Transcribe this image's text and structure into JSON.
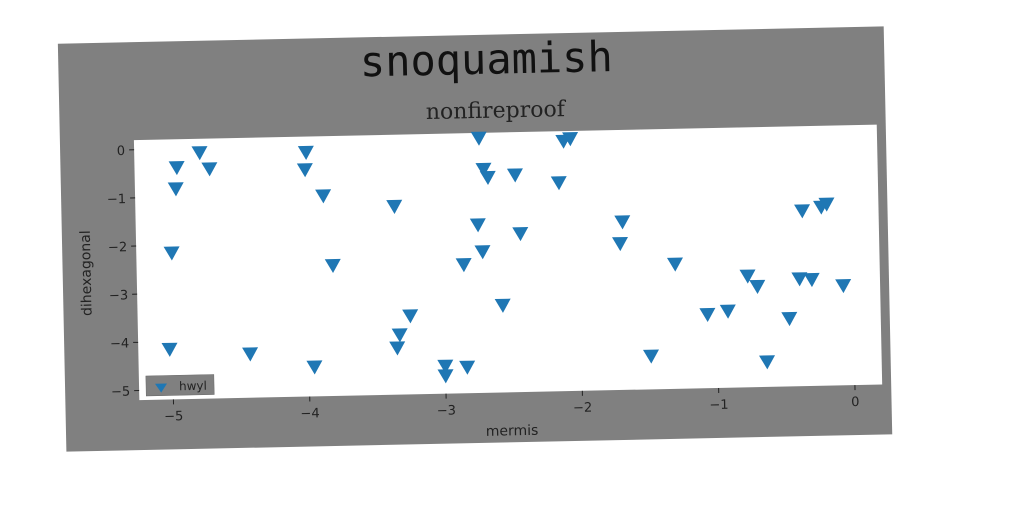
{
  "colors": {
    "figure_bg": "#808080",
    "plot_bg": "#ffffff",
    "marker": "#1f77b4",
    "legend_bg": "#808080"
  },
  "chart_data": {
    "type": "scatter",
    "title": "snoquamish",
    "subtitle": "nonfireproof",
    "xlabel": "mermis",
    "ylabel": "dihexagonal",
    "xlim": [
      -5.25,
      0.2
    ],
    "ylim": [
      -5.2,
      0.2
    ],
    "x_ticks": [
      -5,
      -4,
      -3,
      -2,
      -1,
      0
    ],
    "y_ticks": [
      0,
      -1,
      -2,
      -3,
      -4,
      -5
    ],
    "x_tick_labels": [
      "−5",
      "−4",
      "−3",
      "−2",
      "−1",
      "0"
    ],
    "y_tick_labels": [
      "0",
      "−1",
      "−2",
      "−3",
      "−4",
      "−5"
    ],
    "grid": false,
    "legend_position": "lower-left",
    "marker": "triangle-down",
    "series": [
      {
        "name": "hwyl",
        "points": [
          [
            -4.94,
            -0.38
          ],
          [
            -4.77,
            -0.08
          ],
          [
            -4.7,
            -0.42
          ],
          [
            -4.95,
            -0.82
          ],
          [
            -4.99,
            -2.15
          ],
          [
            -5.02,
            -4.15
          ],
          [
            -4.43,
            -4.28
          ],
          [
            -3.99,
            -0.12
          ],
          [
            -4.0,
            -0.48
          ],
          [
            -3.87,
            -1.03
          ],
          [
            -3.81,
            -2.48
          ],
          [
            -3.96,
            -4.58
          ],
          [
            -3.35,
            -1.28
          ],
          [
            -3.25,
            -3.56
          ],
          [
            -3.33,
            -3.95
          ],
          [
            -3.35,
            -4.22
          ],
          [
            -3.0,
            -4.62
          ],
          [
            -3.0,
            -4.82
          ],
          [
            -2.84,
            -4.65
          ],
          [
            -2.85,
            -2.52
          ],
          [
            -2.74,
            -1.7
          ],
          [
            -2.71,
            -2.26
          ],
          [
            -2.72,
            0.1
          ],
          [
            -2.69,
            -0.55
          ],
          [
            -2.66,
            -0.72
          ],
          [
            -2.57,
            -3.38
          ],
          [
            -2.46,
            -0.68
          ],
          [
            -2.43,
            -1.9
          ],
          [
            -2.14,
            -0.86
          ],
          [
            -2.1,
            0.0
          ],
          [
            -2.05,
            0.05
          ],
          [
            -1.7,
            -2.15
          ],
          [
            -1.68,
            -1.7
          ],
          [
            -1.49,
            -4.5
          ],
          [
            -1.3,
            -2.6
          ],
          [
            -1.07,
            -3.66
          ],
          [
            -0.92,
            -3.6
          ],
          [
            -0.77,
            -2.88
          ],
          [
            -0.7,
            -3.1
          ],
          [
            -0.64,
            -4.67
          ],
          [
            -0.47,
            -3.78
          ],
          [
            -0.39,
            -2.96
          ],
          [
            -0.36,
            -1.55
          ],
          [
            -0.3,
            -2.98
          ],
          [
            -0.22,
            -1.48
          ],
          [
            -0.18,
            -1.42
          ],
          [
            -0.07,
            -3.12
          ]
        ]
      }
    ]
  }
}
